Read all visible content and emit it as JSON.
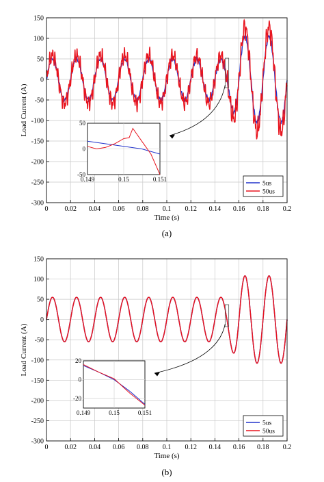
{
  "colors": {
    "series_5us": "#2233cc",
    "series_50us": "#e8141e",
    "grid": "#c8c8c8",
    "axis": "#000000"
  },
  "chart_data": [
    {
      "type": "line",
      "caption": "(a)",
      "xlabel": "Time (s)",
      "ylabel": "Load Current (A)",
      "xlim": [
        0,
        0.2
      ],
      "ylim": [
        -300,
        150
      ],
      "xticks": [
        0,
        0.02,
        0.04,
        0.06,
        0.08,
        0.1,
        0.12,
        0.14,
        0.16,
        0.18,
        0.2
      ],
      "xtick_labels": [
        "0",
        "0.02",
        "0.04",
        "0.06",
        "0.08",
        "0.1",
        "0.12",
        "0.14",
        "0.16",
        "0.18",
        "0.2"
      ],
      "yticks": [
        -300,
        -250,
        -200,
        -150,
        -100,
        -50,
        0,
        50,
        100,
        150
      ],
      "yticks_labels": [
        "-300",
        "-250",
        "-200",
        "-150",
        "-100",
        "-50",
        "0",
        "50",
        "100",
        "150"
      ],
      "grid": true,
      "legend": "bottom-right",
      "series": [
        {
          "name": "5us",
          "amplitude_A_before": 50,
          "amplitude_A_after": 105,
          "frequency_Hz": 50,
          "step_time_s": 0.15
        },
        {
          "name": "50us",
          "amplitude_A_before": 55,
          "amplitude_A_after": 120,
          "frequency_Hz": 50,
          "step_time_s": 0.15
        }
      ],
      "inset": {
        "xlim": [
          0.149,
          0.151
        ],
        "ylim": [
          -50,
          50
        ],
        "xtick_labels": [
          "0.149",
          "0.15",
          "0.151"
        ],
        "ytick_labels": [
          "50",
          "0",
          "-50"
        ],
        "series": [
          {
            "name": "5us",
            "x": [
              0.149,
              0.1495,
              0.15,
              0.1505,
              0.151
            ],
            "y": [
              15,
              10,
              5,
              0,
              -10
            ]
          },
          {
            "name": "50us",
            "x": [
              0.149,
              0.14925,
              0.1495,
              0.14975,
              0.15,
              0.15015,
              0.15025,
              0.1505,
              0.15075,
              0.151
            ],
            "y": [
              5,
              0,
              3,
              10,
              20,
              22,
              40,
              15,
              -10,
              -50
            ]
          }
        ]
      }
    },
    {
      "type": "line",
      "caption": "(b)",
      "xlabel": "Time (s)",
      "ylabel": "Load Current (A)",
      "xlim": [
        0,
        0.2
      ],
      "ylim": [
        -300,
        150
      ],
      "xticks": [
        0,
        0.02,
        0.04,
        0.06,
        0.08,
        0.1,
        0.12,
        0.14,
        0.16,
        0.18,
        0.2
      ],
      "xtick_labels": [
        "0",
        "0.02",
        "0.04",
        "0.06",
        "0.08",
        "0.1",
        "0.12",
        "0.14",
        "0.16",
        "0.18",
        "0.2"
      ],
      "yticks": [
        -300,
        -250,
        -200,
        -150,
        -100,
        -50,
        0,
        50,
        100,
        150
      ],
      "yticks_labels": [
        "-300",
        "-250",
        "-200",
        "-150",
        "-100",
        "-50",
        "0",
        "50",
        "100",
        "150"
      ],
      "grid": true,
      "legend": "bottom-right",
      "series": [
        {
          "name": "5us",
          "amplitude_A_before": 55,
          "amplitude_A_after": 108,
          "frequency_Hz": 50,
          "step_time_s": 0.15
        },
        {
          "name": "50us",
          "amplitude_A_before": 55,
          "amplitude_A_after": 108,
          "frequency_Hz": 50,
          "step_time_s": 0.15
        }
      ],
      "inset": {
        "xlim": [
          0.149,
          0.151
        ],
        "ylim": [
          -30,
          20
        ],
        "xtick_labels": [
          "0.149",
          "0.15",
          "0.151"
        ],
        "ytick_labels": [
          "20",
          "0",
          "-20"
        ],
        "series": [
          {
            "name": "5us",
            "x": [
              0.149,
              0.1495,
              0.15,
              0.1505,
              0.151
            ],
            "y": [
              15,
              8,
              0,
              -12,
              -26
            ]
          },
          {
            "name": "50us",
            "x": [
              0.149,
              0.1495,
              0.15,
              0.1505,
              0.151
            ],
            "y": [
              16,
              8,
              1,
              -14,
              -27
            ]
          }
        ]
      }
    }
  ]
}
